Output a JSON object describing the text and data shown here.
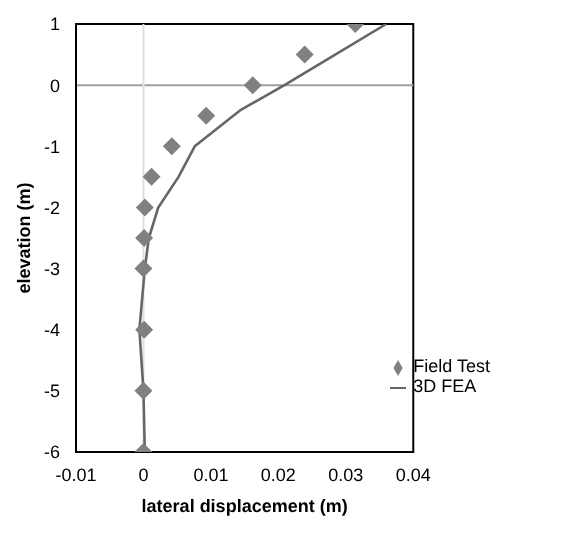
{
  "chart_data": {
    "type": "scatter",
    "xlabel": "lateral displacement (m)",
    "ylabel": "elevation (m)",
    "xlim": [
      -0.01,
      0.04
    ],
    "xticks": [
      -0.01,
      0,
      0.01,
      0.02,
      0.03,
      0.04
    ],
    "ylim": [
      -6,
      1
    ],
    "yticks": [
      -6,
      -5,
      -4,
      -3,
      -2,
      -1,
      0,
      1
    ],
    "grid": false,
    "legend": "bottom right",
    "ref_lines": [
      {
        "axis": "y",
        "value": 0,
        "color": "#a0a0a0"
      },
      {
        "axis": "x",
        "value": 0,
        "color": "#e0e0e0"
      }
    ],
    "series": [
      {
        "name": "Field Test",
        "marker": "diamond",
        "color": "#808080",
        "x": [
          0.0314,
          0.0239,
          0.0162,
          0.0093,
          0.0042,
          0.0012,
          0.0002,
          0.0001,
          0.0,
          0.0001,
          0.0,
          0.0
        ],
        "values": [
          1,
          0.5,
          0,
          -0.5,
          -1,
          -1.5,
          -2,
          -2.5,
          -3,
          -4,
          -5,
          -6
        ]
      },
      {
        "name": "3D FEA",
        "type": "line",
        "marker": "none",
        "line_style": "solid",
        "color": "#666666",
        "x": [
          0.036,
          0.0209,
          0.0145,
          0.0076,
          0.0052,
          0.0022,
          0.0008,
          0.0002,
          -0.0006,
          0.0,
          0.0002
        ],
        "values": [
          1,
          0,
          -0.4,
          -1,
          -1.5,
          -2,
          -2.5,
          -3,
          -4,
          -5,
          -6
        ]
      }
    ]
  }
}
